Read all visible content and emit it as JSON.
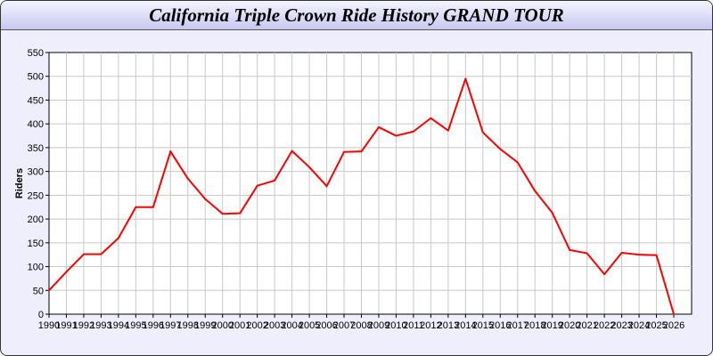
{
  "chart_data": {
    "type": "line",
    "title": "California Triple Crown Ride History GRAND TOUR",
    "xlabel": "",
    "ylabel": "Riders",
    "ylim": [
      0,
      550
    ],
    "yticks": [
      0,
      50,
      100,
      150,
      200,
      250,
      300,
      350,
      400,
      450,
      500,
      550
    ],
    "grid": true,
    "x": [
      1990,
      1991,
      1992,
      1993,
      1994,
      1995,
      1996,
      1997,
      1998,
      1999,
      2000,
      2001,
      2002,
      2003,
      2004,
      2005,
      2006,
      2007,
      2008,
      2009,
      2010,
      2011,
      2012,
      2013,
      2014,
      2015,
      2016,
      2017,
      2018,
      2019,
      2020,
      2021,
      2022,
      2023,
      2024,
      2025,
      2026
    ],
    "series": [
      {
        "color": "#ff0000",
        "values": [
          50,
          89,
          126,
          126,
          160,
          225,
          225,
          342,
          285,
          242,
          211,
          212,
          270,
          281,
          343,
          309,
          269,
          341,
          342,
          393,
          375,
          384,
          412,
          386,
          495,
          382,
          347,
          319,
          259,
          213,
          135,
          128,
          84,
          129,
          125,
          124,
          0
        ]
      }
    ]
  }
}
